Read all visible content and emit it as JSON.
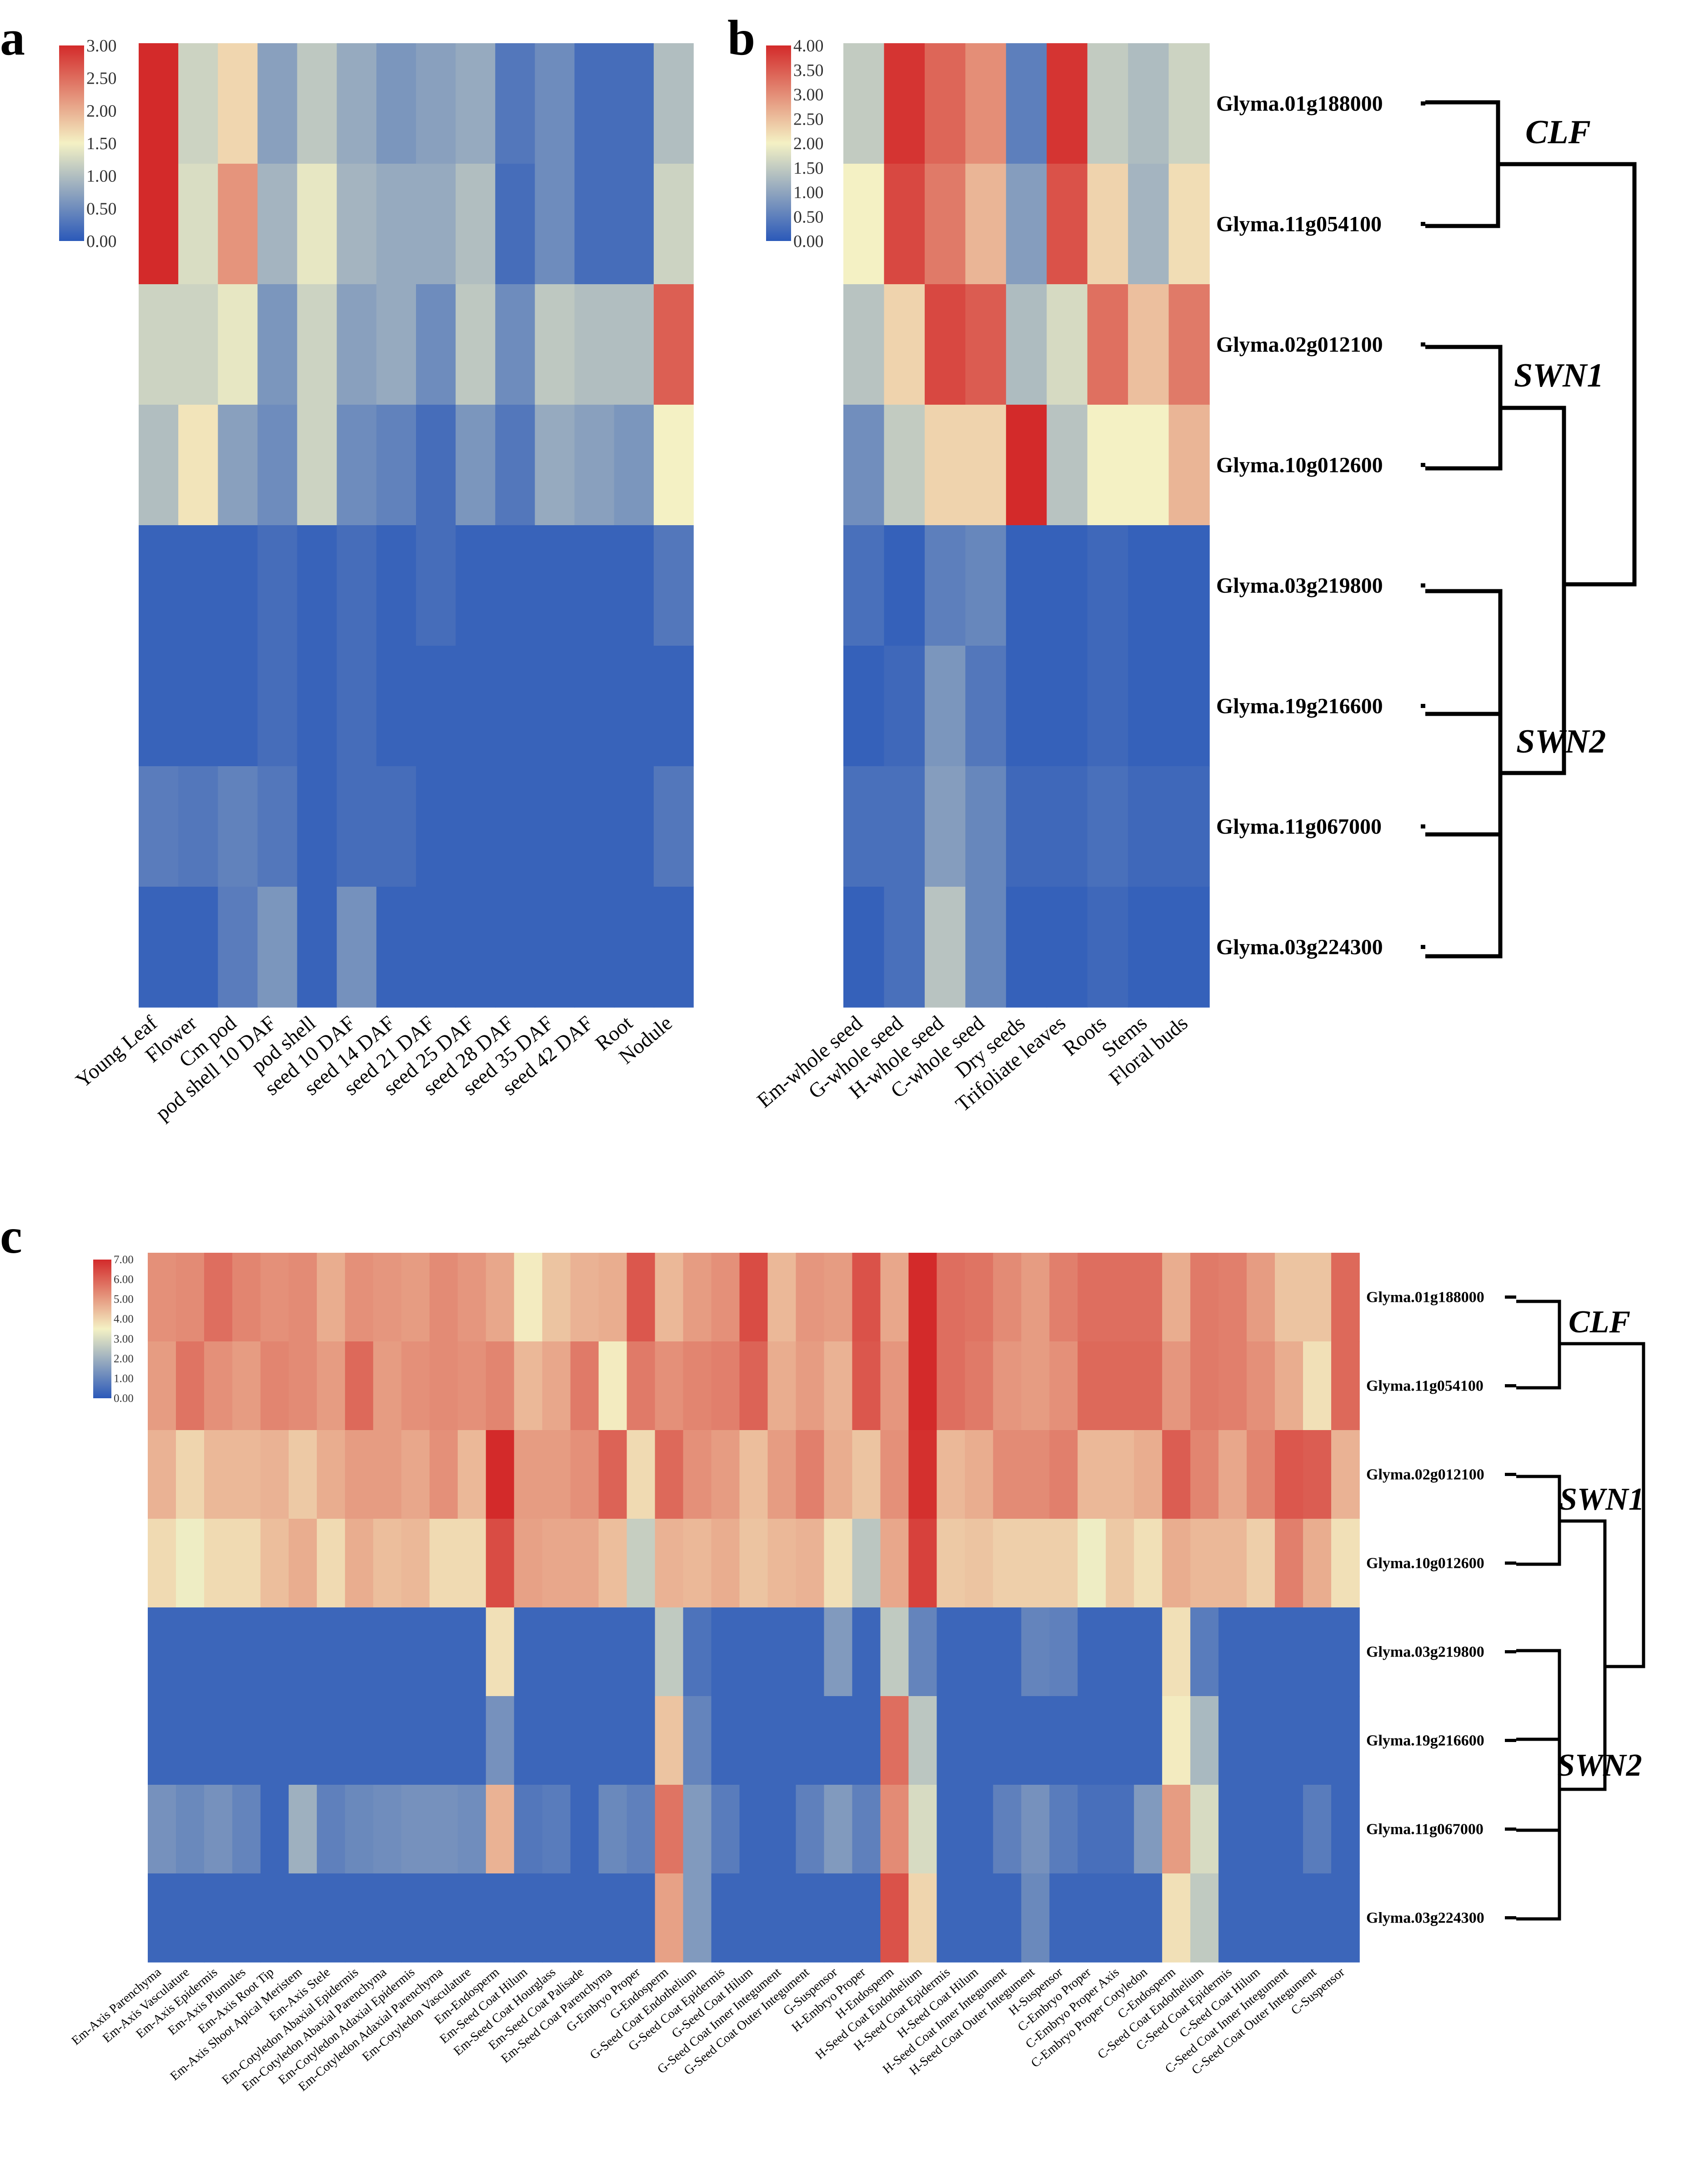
{
  "figure": {
    "panel_labels": [
      "a",
      "b",
      "c"
    ],
    "colors": {
      "low": "#2b59b9",
      "mid": "#f4f1c4",
      "high": "#d32a2a"
    }
  },
  "genes": [
    "Glyma.01g188000",
    "Glyma.11g054100",
    "Glyma.02g012100",
    "Glyma.10g012600",
    "Glyma.03g219800",
    "Glyma.19g216600",
    "Glyma.11g067000",
    "Glyma.03g224300"
  ],
  "clades": [
    "CLF",
    "SWN1",
    "SWN2"
  ],
  "chart_data": [
    {
      "type": "heatmap",
      "panel": "a",
      "categories": [
        "Young Leaf",
        "Flower",
        "Cm pod",
        "pod shell 10 DAF",
        "pod shell",
        "seed 10 DAF",
        "seed 14 DAF",
        "seed 21 DAF",
        "seed 25 DAF",
        "seed 28 DAF",
        "seed 35 DAF",
        "seed 42 DAF",
        "Root",
        "Nodule"
      ],
      "rows": [
        [
          3.0,
          1.2,
          1.7,
          0.7,
          1.1,
          0.8,
          0.6,
          0.7,
          0.8,
          0.3,
          0.5,
          0.2,
          0.2,
          1.0
        ],
        [
          3.0,
          1.3,
          2.2,
          0.9,
          1.4,
          0.9,
          0.8,
          0.8,
          1.0,
          0.2,
          0.5,
          0.2,
          0.2,
          1.2
        ],
        [
          1.2,
          1.2,
          1.4,
          0.6,
          1.2,
          0.7,
          0.8,
          0.5,
          1.1,
          0.5,
          1.1,
          1.0,
          1.0,
          2.6
        ],
        [
          1.0,
          1.6,
          0.7,
          0.5,
          1.2,
          0.5,
          0.4,
          0.2,
          0.6,
          0.3,
          0.8,
          0.7,
          0.6,
          1.5
        ],
        [
          0.1,
          0.1,
          0.1,
          0.2,
          0.1,
          0.2,
          0.1,
          0.2,
          0.1,
          0.1,
          0.1,
          0.1,
          0.1,
          0.3
        ],
        [
          0.1,
          0.1,
          0.1,
          0.2,
          0.1,
          0.2,
          0.1,
          0.1,
          0.1,
          0.1,
          0.1,
          0.1,
          0.1,
          0.1
        ],
        [
          0.35,
          0.3,
          0.4,
          0.3,
          0.1,
          0.2,
          0.2,
          0.1,
          0.1,
          0.1,
          0.1,
          0.1,
          0.1,
          0.3
        ],
        [
          0.1,
          0.1,
          0.35,
          0.6,
          0.1,
          0.55,
          0.1,
          0.1,
          0.1,
          0.1,
          0.1,
          0.1,
          0.1,
          0.1
        ]
      ],
      "color_scale": {
        "min": 0.0,
        "max": 3.0,
        "ticks": [
          "3.00",
          "2.50",
          "2.00",
          "1.50",
          "1.00",
          "0.50",
          "0.00"
        ]
      }
    },
    {
      "type": "heatmap",
      "panel": "b",
      "categories": [
        "Em-whole seed",
        "G-whole seed",
        "H-whole seed",
        "C-whole seed",
        "Dry seeds",
        "Trifoliate leaves",
        "Roots",
        "Stems",
        "Floral buds"
      ],
      "rows": [
        [
          1.5,
          3.9,
          3.4,
          3.0,
          0.5,
          3.9,
          1.5,
          1.3,
          1.6
        ],
        [
          2.0,
          3.7,
          3.2,
          2.6,
          0.9,
          3.6,
          2.3,
          1.2,
          2.2
        ],
        [
          1.4,
          2.3,
          3.7,
          3.5,
          1.3,
          1.7,
          3.3,
          2.5,
          3.2
        ],
        [
          0.7,
          1.5,
          2.3,
          2.3,
          4.0,
          1.4,
          2.0,
          2.0,
          2.6
        ],
        [
          0.3,
          0.1,
          0.5,
          0.6,
          0.1,
          0.1,
          0.2,
          0.1,
          0.1
        ],
        [
          0.1,
          0.2,
          0.8,
          0.4,
          0.1,
          0.1,
          0.2,
          0.1,
          0.1
        ],
        [
          0.3,
          0.3,
          0.9,
          0.6,
          0.2,
          0.2,
          0.3,
          0.2,
          0.2
        ],
        [
          0.1,
          0.3,
          1.4,
          0.6,
          0.1,
          0.1,
          0.2,
          0.1,
          0.1
        ]
      ],
      "color_scale": {
        "min": 0.0,
        "max": 4.0,
        "ticks": [
          "4.00",
          "3.50",
          "3.00",
          "2.50",
          "2.00",
          "1.50",
          "1.00",
          "0.50",
          "0.00"
        ]
      }
    },
    {
      "type": "heatmap",
      "panel": "c",
      "categories": [
        "Em-Axis Parenchyma",
        "Em-Axis Vasculature",
        "Em-Axis Epidermis",
        "Em-Axis Plumules",
        "Em-Axis Root Tip",
        "Em-Axis Shoot Apical Meristem",
        "Em-Axis Stele",
        "Em-Cotyledon Abaxial Epidermis",
        "Em-Cotyledon Abaxial Parenchyma",
        "Em-Cotyledon Adaxial Epidermis",
        "Em-Cotyledon Adaxial Parenchyma",
        "Em-Cotyledon Vasculature",
        "Em-Endosperm",
        "Em-Seed Coat Hilum",
        "Em-Seed Coat Hourglass",
        "Em-Seed Coat Palisade",
        "Em-Seed Coat Parenchyma",
        "G-Embryo Proper",
        "G-Endosperm",
        "G-Seed Coat Endothelium",
        "G-Seed Coat Epidermis",
        "G-Seed Coat Hilum",
        "G-Seed Coat Inner Integument",
        "G-Seed Coat Outer Integument",
        "G-Suspensor",
        "H-Embryo Proper",
        "H-Endosperm",
        "H-Seed Coat Endothelium",
        "H-Seed Coat Epidermis",
        "H-Seed Coat Hilum",
        "H-Seed Coat Inner Integument",
        "H-Seed Coat Outer Integument",
        "H-Suspensor",
        "C-Embryo Proper",
        "C-Embryo Proper Axis",
        "C-Embryo Proper Cotyledon",
        "C-Endosperm",
        "C-Seed Coat Endothelium",
        "C-Seed Coat Epidermis",
        "C-Seed Coat Hilum",
        "C-Seed Coat Inner Integument",
        "C-Seed Coat Outer Integument",
        "C-Suspensor"
      ],
      "rows": [
        [
          5.2,
          5.3,
          5.8,
          5.4,
          5.2,
          5.3,
          4.7,
          5.2,
          5.1,
          5.0,
          5.3,
          5.1,
          4.8,
          3.6,
          4.3,
          4.6,
          4.7,
          6.2,
          4.5,
          5.0,
          5.2,
          6.4,
          4.5,
          5.1,
          5.0,
          6.3,
          4.8,
          7.0,
          5.8,
          5.7,
          5.3,
          5.0,
          5.5,
          5.8,
          5.8,
          5.8,
          4.7,
          5.6,
          5.5,
          5.0,
          4.3,
          4.3,
          5.9
        ],
        [
          5.0,
          5.7,
          5.2,
          5.0,
          5.4,
          5.3,
          5.0,
          5.9,
          5.0,
          5.2,
          5.3,
          5.2,
          5.4,
          4.5,
          4.8,
          5.6,
          3.6,
          5.6,
          5.2,
          5.4,
          5.5,
          6.0,
          4.7,
          5.0,
          4.6,
          6.2,
          5.1,
          7.0,
          5.8,
          5.6,
          5.1,
          5.0,
          5.2,
          5.9,
          5.9,
          5.9,
          5.1,
          5.6,
          5.5,
          5.2,
          4.7,
          3.8,
          5.9
        ],
        [
          4.6,
          4.0,
          4.5,
          4.5,
          4.6,
          4.2,
          4.7,
          5.0,
          5.0,
          4.8,
          5.2,
          4.5,
          7.0,
          5.0,
          5.0,
          5.2,
          6.0,
          3.9,
          5.9,
          5.2,
          5.0,
          4.4,
          5.0,
          5.5,
          4.7,
          4.3,
          5.2,
          6.9,
          4.5,
          4.7,
          5.3,
          5.3,
          5.5,
          4.5,
          4.5,
          4.7,
          6.1,
          5.4,
          4.8,
          5.4,
          6.2,
          6.1,
          4.6
        ],
        [
          3.9,
          3.4,
          3.9,
          3.9,
          4.4,
          4.7,
          3.9,
          4.7,
          4.4,
          4.5,
          3.9,
          3.9,
          6.4,
          4.9,
          4.8,
          4.8,
          4.4,
          2.7,
          4.6,
          4.5,
          4.7,
          4.3,
          4.5,
          4.6,
          3.8,
          2.5,
          4.8,
          6.6,
          4.2,
          4.3,
          4.1,
          4.1,
          4.1,
          3.4,
          4.2,
          3.8,
          4.7,
          4.5,
          4.5,
          4.1,
          5.5,
          4.7,
          3.8
        ],
        [
          0.3,
          0.3,
          0.3,
          0.3,
          0.3,
          0.3,
          0.3,
          0.3,
          0.3,
          0.3,
          0.3,
          0.3,
          3.8,
          0.3,
          0.3,
          0.3,
          0.3,
          0.3,
          2.6,
          0.6,
          0.3,
          0.3,
          0.3,
          0.3,
          1.5,
          0.3,
          2.6,
          1.0,
          0.3,
          0.3,
          0.3,
          1.0,
          0.9,
          0.3,
          0.3,
          0.3,
          3.8,
          0.8,
          0.3,
          0.3,
          0.3,
          0.3,
          0.3
        ],
        [
          0.3,
          0.3,
          0.3,
          0.3,
          0.3,
          0.3,
          0.3,
          0.3,
          0.3,
          0.3,
          0.3,
          0.3,
          1.3,
          0.3,
          0.3,
          0.3,
          0.3,
          0.3,
          4.3,
          1.0,
          0.3,
          0.3,
          0.3,
          0.3,
          0.3,
          0.3,
          5.8,
          2.5,
          0.3,
          0.3,
          0.3,
          0.3,
          0.3,
          0.3,
          0.3,
          0.3,
          3.6,
          2.2,
          0.3,
          0.3,
          0.3,
          0.3,
          0.3
        ],
        [
          1.3,
          1.1,
          1.3,
          1.0,
          0.3,
          2.0,
          0.9,
          1.1,
          1.2,
          1.3,
          1.3,
          1.2,
          4.6,
          0.7,
          0.8,
          0.3,
          1.1,
          0.9,
          5.7,
          1.5,
          0.8,
          0.3,
          0.3,
          0.9,
          1.5,
          0.9,
          5.3,
          3.0,
          0.3,
          0.3,
          0.9,
          1.3,
          0.8,
          0.5,
          0.5,
          1.5,
          5.0,
          3.0,
          0.3,
          0.3,
          0.3,
          0.8,
          0.3
        ],
        [
          0.3,
          0.3,
          0.3,
          0.3,
          0.3,
          0.3,
          0.3,
          0.3,
          0.3,
          0.3,
          0.3,
          0.3,
          0.3,
          0.3,
          0.3,
          0.3,
          0.3,
          0.3,
          4.9,
          1.5,
          0.3,
          0.3,
          0.3,
          0.3,
          0.3,
          0.3,
          6.3,
          4.0,
          0.3,
          0.3,
          0.3,
          1.1,
          0.3,
          0.3,
          0.3,
          0.3,
          3.8,
          2.6,
          0.3,
          0.3,
          0.3,
          0.3,
          0.3
        ]
      ],
      "color_scale": {
        "min": 0.0,
        "max": 7.0,
        "ticks": [
          "7.00",
          "6.00",
          "5.00",
          "4.00",
          "3.00",
          "2.00",
          "1.00",
          "0.00"
        ]
      }
    }
  ]
}
